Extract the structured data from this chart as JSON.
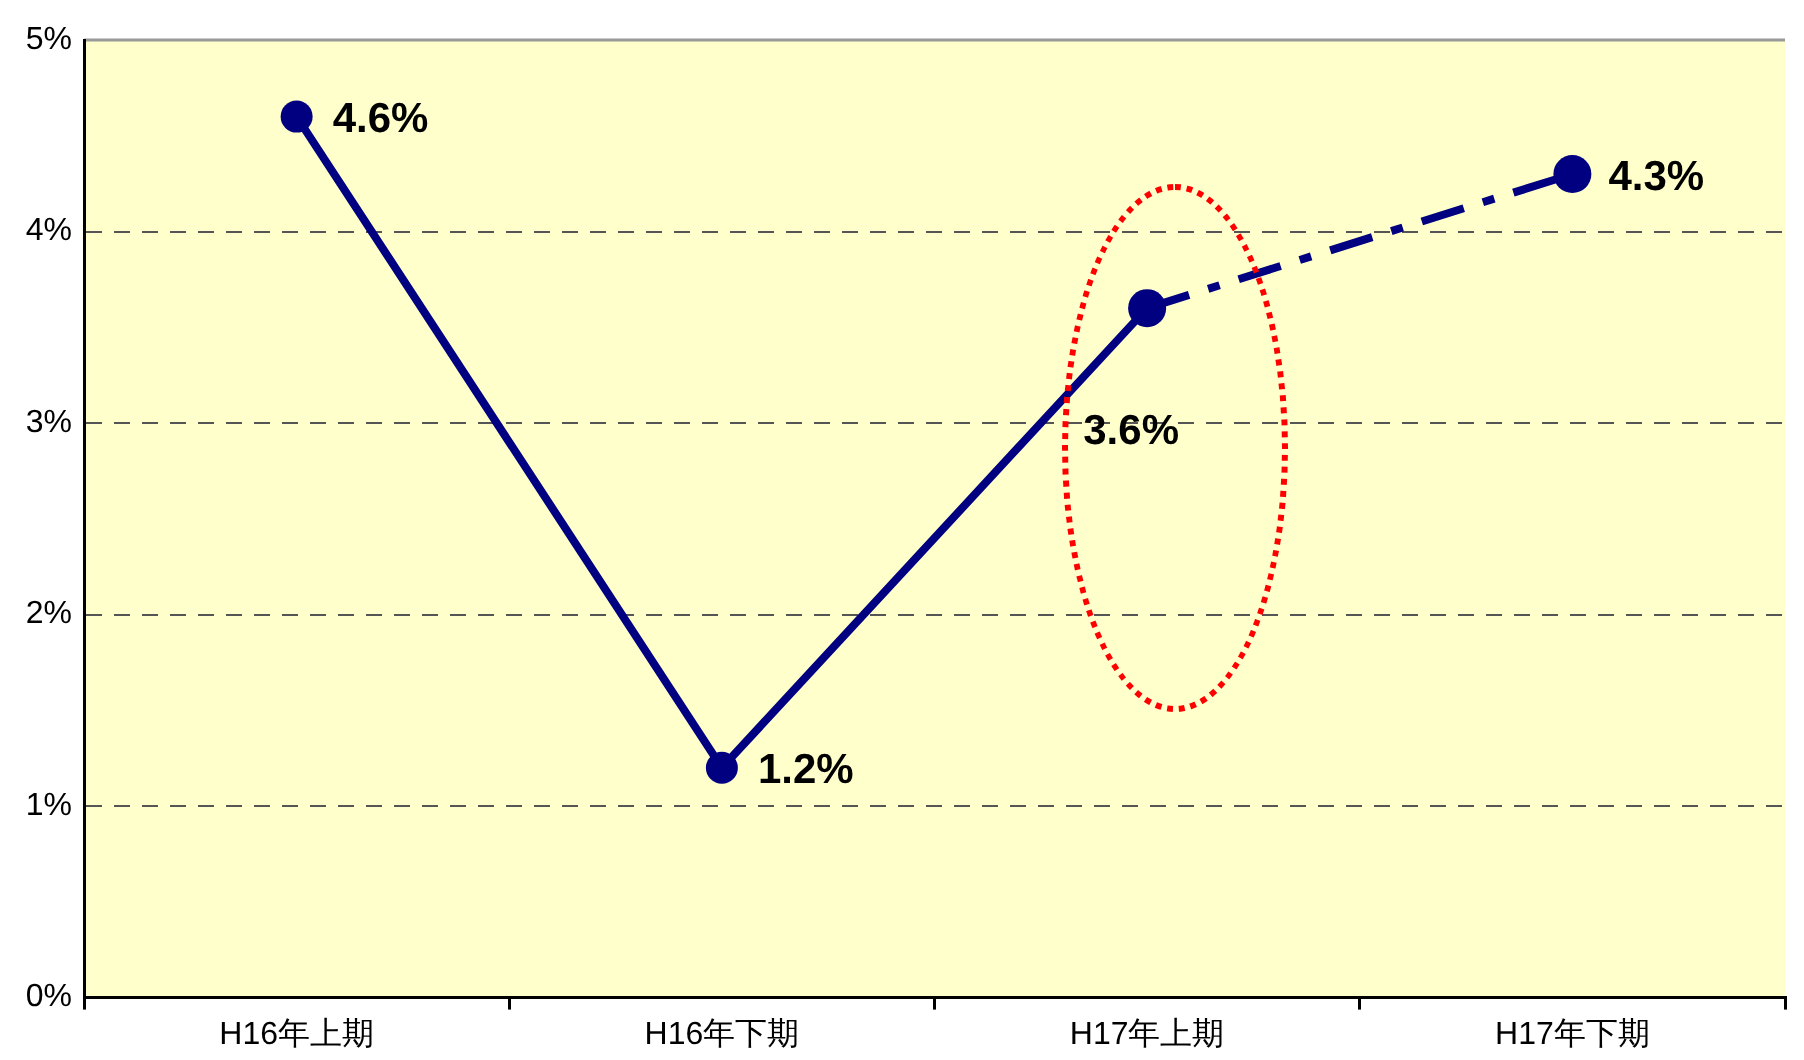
{
  "chart_data": {
    "type": "line",
    "categories": [
      "H16年上期",
      "H16年下期",
      "H17年上期",
      "H17年下期"
    ],
    "series": [
      {
        "color": "#000080",
        "values": [
          4.6,
          1.2,
          3.6,
          null
        ],
        "value_labels": [
          "4.6%",
          "1.2%",
          "3.6%",
          null
        ],
        "line_style": "solid"
      },
      {
        "color": "#000080",
        "values": [
          null,
          null,
          3.6,
          4.3
        ],
        "value_labels": [
          null,
          null,
          null,
          "4.3%"
        ],
        "line_style": "dashed"
      }
    ],
    "ylim": [
      0,
      5
    ],
    "yticks": [
      {
        "value": 0,
        "label": "0%"
      },
      {
        "value": 1,
        "label": "1%"
      },
      {
        "value": 2,
        "label": "2%"
      },
      {
        "value": 3,
        "label": "3%"
      },
      {
        "value": 4,
        "label": "4%"
      },
      {
        "value": 5,
        "label": "5%"
      }
    ],
    "grid": "y",
    "legend": false,
    "marker": "circle"
  }
}
